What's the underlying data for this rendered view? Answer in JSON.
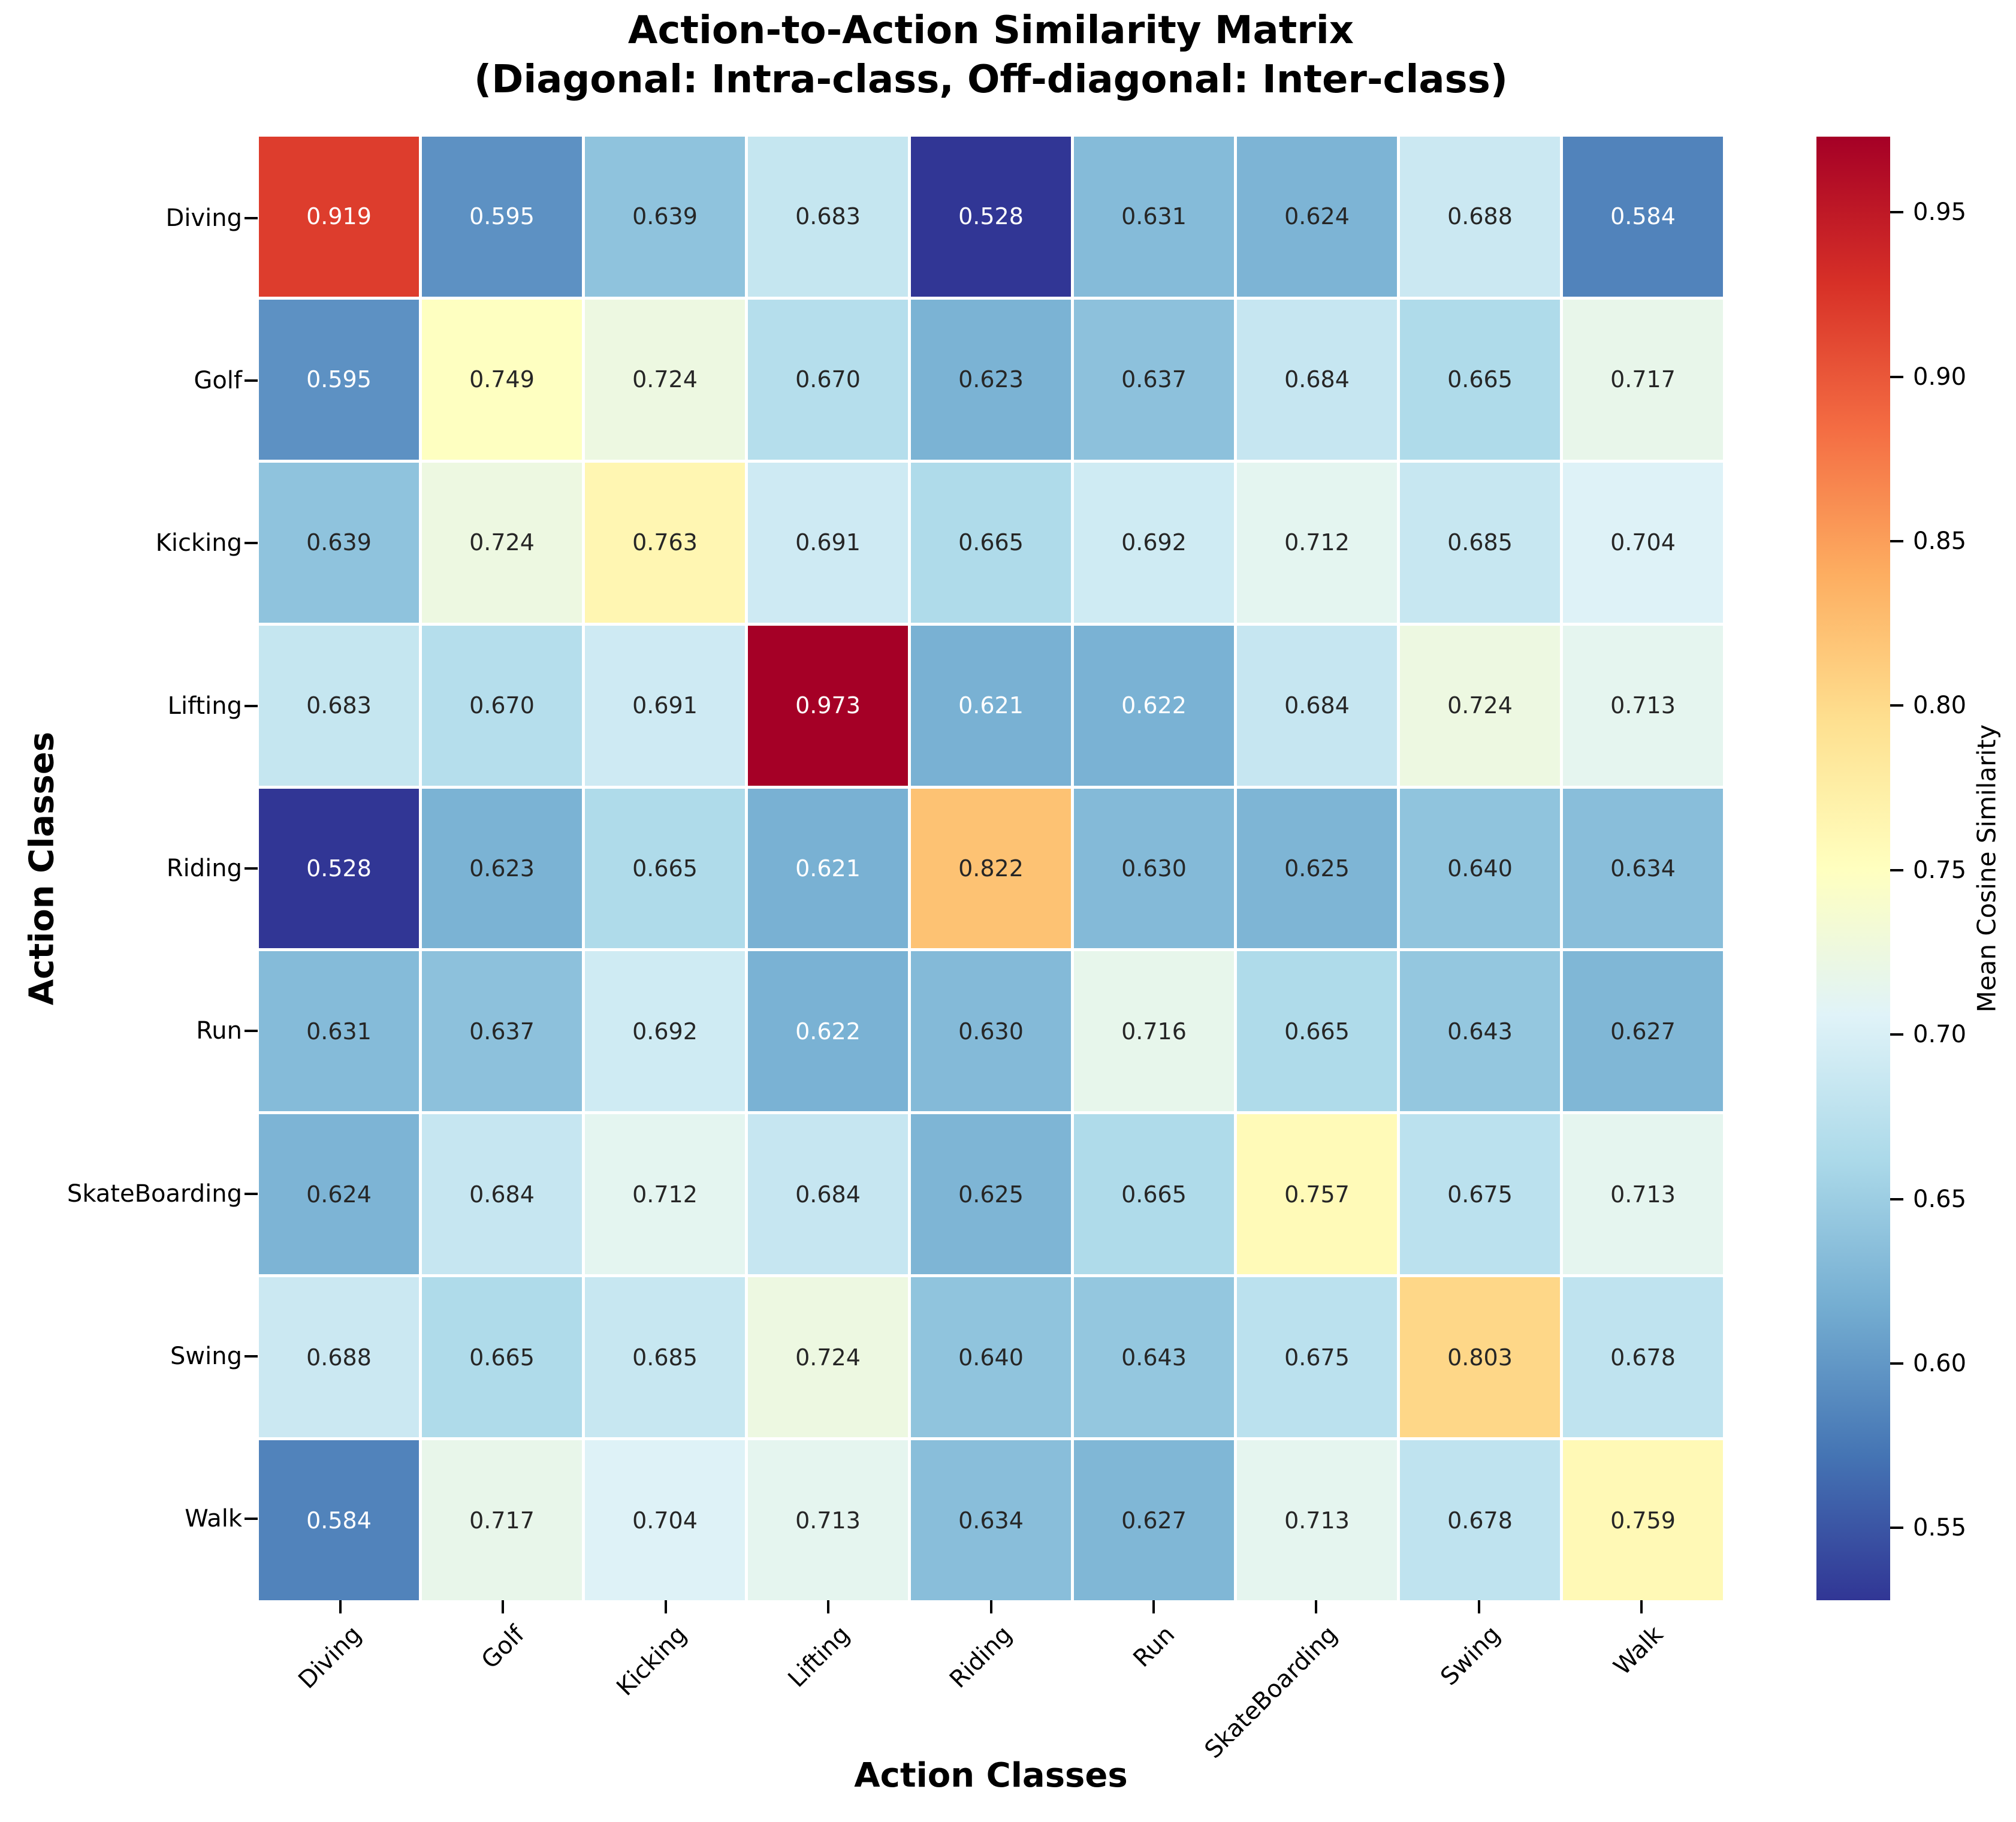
{
  "title": {
    "line1": "Action-to-Action Similarity Matrix",
    "line2": "(Diagonal: Intra-class, Off-diagonal: Inter-class)"
  },
  "axes": {
    "x_label": "Action Classes",
    "y_label": "Action Classes"
  },
  "colorbar": {
    "label": "Mean Cosine Similarity",
    "tick_labels": [
      "0.95",
      "0.90",
      "0.85",
      "0.80",
      "0.75",
      "0.70",
      "0.65",
      "0.60",
      "0.55"
    ],
    "tick_values": [
      0.95,
      0.9,
      0.85,
      0.8,
      0.75,
      0.7,
      0.65,
      0.6,
      0.55
    ]
  },
  "chart_data": {
    "type": "heatmap",
    "title": "Action-to-Action Similarity Matrix (Diagonal: Intra-class, Off-diagonal: Inter-class)",
    "xlabel": "Action Classes",
    "ylabel": "Action Classes",
    "categories": [
      "Diving",
      "Golf",
      "Kicking",
      "Lifting",
      "Riding",
      "Run",
      "SkateBoarding",
      "Swing",
      "Walk"
    ],
    "matrix": [
      [
        0.919,
        0.595,
        0.639,
        0.683,
        0.528,
        0.631,
        0.624,
        0.688,
        0.584
      ],
      [
        0.595,
        0.749,
        0.724,
        0.67,
        0.623,
        0.637,
        0.684,
        0.665,
        0.717
      ],
      [
        0.639,
        0.724,
        0.763,
        0.691,
        0.665,
        0.692,
        0.712,
        0.685,
        0.704
      ],
      [
        0.683,
        0.67,
        0.691,
        0.973,
        0.621,
        0.622,
        0.684,
        0.724,
        0.713
      ],
      [
        0.528,
        0.623,
        0.665,
        0.621,
        0.822,
        0.63,
        0.625,
        0.64,
        0.634
      ],
      [
        0.631,
        0.637,
        0.692,
        0.622,
        0.63,
        0.716,
        0.665,
        0.643,
        0.627
      ],
      [
        0.624,
        0.684,
        0.712,
        0.684,
        0.625,
        0.665,
        0.757,
        0.675,
        0.713
      ],
      [
        0.688,
        0.665,
        0.685,
        0.724,
        0.64,
        0.643,
        0.675,
        0.803,
        0.678
      ],
      [
        0.584,
        0.717,
        0.704,
        0.713,
        0.634,
        0.627,
        0.713,
        0.678,
        0.759
      ]
    ],
    "value_decimals": 3,
    "vmin": 0.528,
    "vmax": 0.973,
    "colormap": {
      "name": "RdYlBu_r",
      "anchors": [
        "#313695",
        "#4575b4",
        "#74add1",
        "#abd9e9",
        "#e0f3f8",
        "#ffffbf",
        "#fee090",
        "#fdae61",
        "#f46d43",
        "#d73027",
        "#a50026"
      ]
    },
    "annotation_colors": {
      "light": "#ffffff",
      "dark": "#262626"
    },
    "legend_position": "right-colorbar",
    "grid_line_color": "#ffffff"
  }
}
